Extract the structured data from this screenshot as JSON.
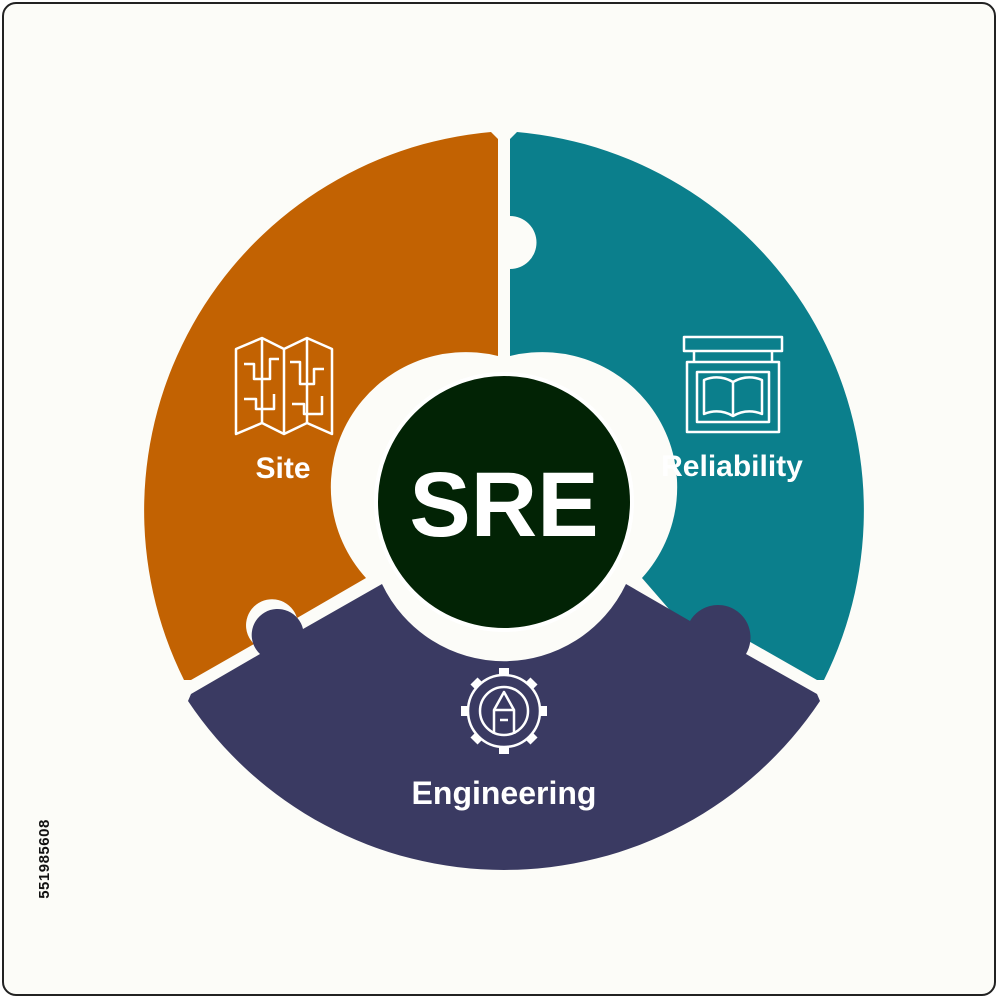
{
  "diagram": {
    "center_label": "SRE",
    "segments": [
      {
        "label": "Site",
        "icon": "map-icon",
        "color": "#c26202"
      },
      {
        "label": "Reliability",
        "icon": "book-signboard-icon",
        "color": "#0b7f8c"
      },
      {
        "label": "Engineering",
        "icon": "gear-pencil-icon",
        "color": "#3a3a62"
      }
    ],
    "center_color": "#022305"
  },
  "watermark": {
    "stock_id": "551985608"
  }
}
